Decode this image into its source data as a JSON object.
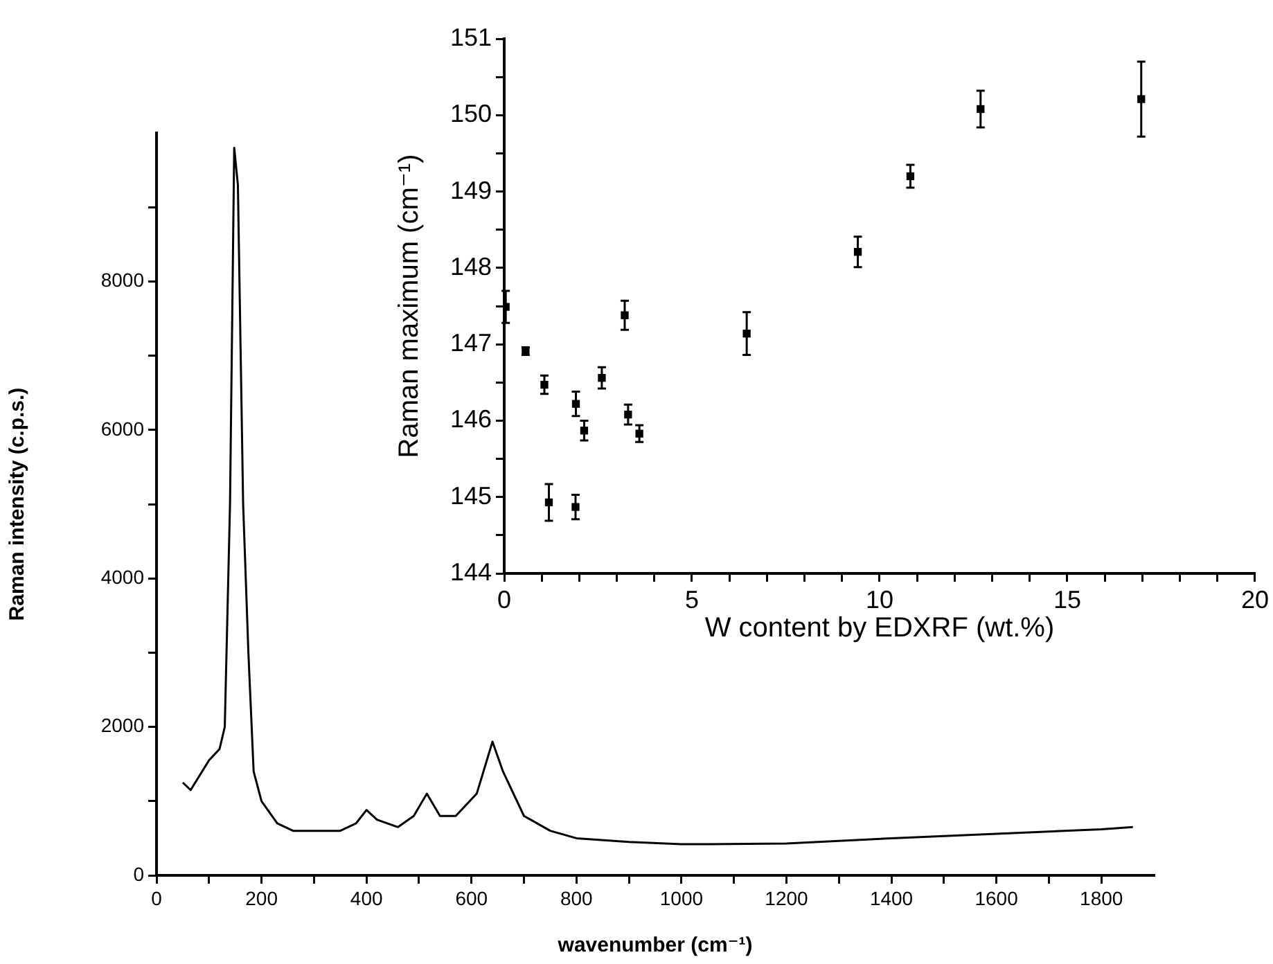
{
  "chart_data": [
    {
      "type": "line",
      "xlabel": "wavenumber (cm⁻¹)",
      "ylabel": "Raman intensity (c.p.s.)",
      "marker": "none",
      "line_style": "solid",
      "grid": false,
      "x": [
        50,
        65,
        100,
        120,
        130,
        140,
        148,
        155,
        165,
        175,
        185,
        200,
        230,
        260,
        300,
        350,
        380,
        400,
        420,
        460,
        490,
        515,
        540,
        570,
        610,
        640,
        660,
        700,
        750,
        800,
        900,
        1000,
        1050,
        1200,
        1400,
        1600,
        1800,
        1860
      ],
      "series": [
        {
          "color": "#000000",
          "values": [
            1250,
            1150,
            1550,
            1700,
            2000,
            5000,
            9800,
            9300,
            5000,
            3000,
            1400,
            1000,
            700,
            600,
            600,
            600,
            700,
            880,
            750,
            650,
            800,
            1100,
            800,
            800,
            1100,
            1800,
            1400,
            800,
            600,
            500,
            450,
            420,
            420,
            430,
            500,
            560,
            620,
            650
          ]
        }
      ],
      "xlim": [
        0,
        1900
      ],
      "ylim": [
        0,
        10000
      ],
      "xticks": [
        0,
        {
          "value": 100,
          "label": null
        },
        200,
        {
          "value": 300,
          "label": null
        },
        400,
        {
          "value": 500,
          "label": null
        },
        600,
        {
          "value": 700,
          "label": null
        },
        800,
        {
          "value": 900,
          "label": null
        },
        1000,
        {
          "value": 1100,
          "label": null
        },
        1200,
        {
          "value": 1300,
          "label": null
        },
        1400,
        {
          "value": 1500,
          "label": null
        },
        1600,
        {
          "value": 1700,
          "label": null
        },
        1800
      ],
      "yticks": [
        0,
        {
          "value": 1000,
          "label": null
        },
        2000,
        {
          "value": 3000,
          "label": null
        },
        4000,
        {
          "value": 5000,
          "label": null
        },
        6000,
        {
          "value": 7000,
          "label": null
        },
        8000,
        {
          "value": 9000,
          "label": null
        }
      ]
    },
    {
      "type": "scatter",
      "xlabel": "W content by EDXRF (wt.%)",
      "ylabel": "Raman maximum (cm⁻¹)",
      "marker": "square",
      "grid": false,
      "x": [
        0.04,
        0.57,
        1.07,
        1.19,
        1.91,
        1.9,
        2.13,
        2.6,
        3.21,
        3.3,
        3.6,
        6.46,
        9.42,
        10.82,
        12.69,
        16.97
      ],
      "series": [
        {
          "color": "#000000",
          "values": [
            147.49,
            146.91,
            146.47,
            144.93,
            146.22,
            144.87,
            145.87,
            146.56,
            147.38,
            146.08,
            145.83,
            147.14,
            148.21,
            149.2,
            150.08,
            150.21
          ],
          "errors": [
            0.21,
            0.05,
            0.12,
            0.24,
            0.16,
            0.16,
            0.13,
            0.14,
            0.19,
            0.13,
            0.11,
            0.28,
            0.2,
            0.15,
            0.24,
            0.49
          ]
        }
      ],
      "xlim": [
        0,
        20
      ],
      "ylim": [
        144,
        151
      ],
      "xticks": [
        0,
        {
          "value": 1,
          "label": null
        },
        {
          "value": 2,
          "label": null
        },
        {
          "value": 3,
          "label": null
        },
        {
          "value": 4,
          "label": null
        },
        5,
        {
          "value": 6,
          "label": null
        },
        {
          "value": 7,
          "label": null
        },
        {
          "value": 8,
          "label": null
        },
        {
          "value": 9,
          "label": null
        },
        10,
        {
          "value": 11,
          "label": null
        },
        {
          "value": 12,
          "label": null
        },
        {
          "value": 13,
          "label": null
        },
        {
          "value": 14,
          "label": null
        },
        15,
        {
          "value": 16,
          "label": null
        },
        {
          "value": 17,
          "label": null
        },
        {
          "value": 18,
          "label": null
        },
        {
          "value": 19,
          "label": null
        },
        20
      ],
      "yticks": [
        144,
        {
          "value": 144.5,
          "label": null
        },
        145,
        {
          "value": 145.5,
          "label": null
        },
        146,
        {
          "value": 146.5,
          "label": null
        },
        147,
        {
          "value": 147.5,
          "label": null
        },
        148,
        {
          "value": 148.5,
          "label": null
        },
        149,
        {
          "value": 149.5,
          "label": null
        },
        150,
        {
          "value": 150.5,
          "label": null
        },
        151
      ]
    }
  ]
}
